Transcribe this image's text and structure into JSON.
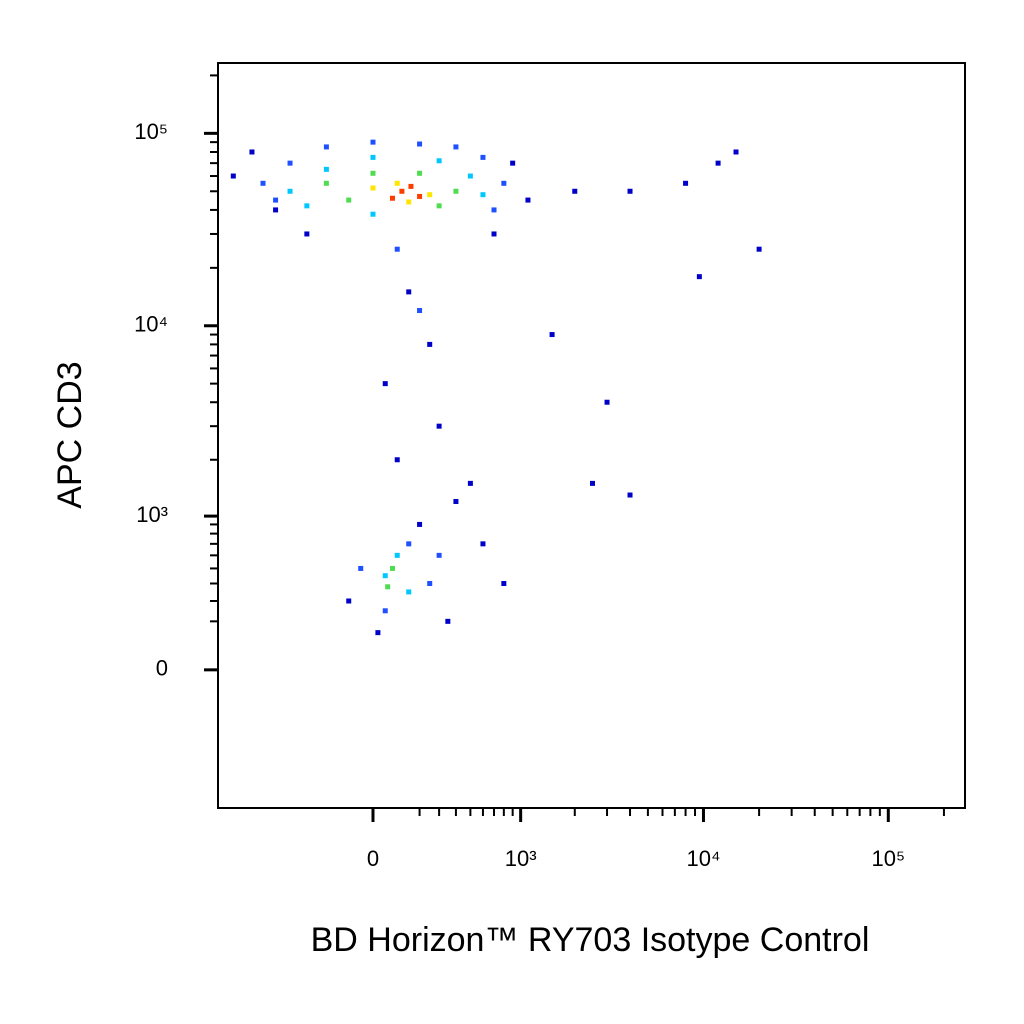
{
  "chart_data": {
    "type": "scatter",
    "x_label": "BD Horizon™ RY703 Isotype Control",
    "y_label": "APC  CD3",
    "scale": "biexponential",
    "xlim": [
      -1100,
      260000
    ],
    "ylim": [
      -820,
      232000
    ],
    "xticks": [
      0,
      {
        "value": 1000,
        "label": "10³"
      },
      {
        "value": 10000,
        "label": "10⁴"
      },
      {
        "value": 100000,
        "label": "10⁵"
      }
    ],
    "yticks": [
      0,
      {
        "value": 1000,
        "label": "10³"
      },
      {
        "value": 10000,
        "label": "10⁴"
      },
      {
        "value": 100000,
        "label": "10⁵"
      }
    ],
    "xminorticks": [
      200,
      300,
      400,
      500,
      600,
      700,
      800,
      900,
      2000,
      3000,
      4000,
      5000,
      6000,
      7000,
      8000,
      9000,
      20000,
      30000,
      40000,
      50000,
      60000,
      70000,
      80000,
      90000,
      200000
    ],
    "yminorticks": [
      200,
      300,
      400,
      500,
      600,
      700,
      800,
      900,
      2000,
      3000,
      4000,
      5000,
      6000,
      7000,
      8000,
      9000,
      20000,
      30000,
      40000,
      50000,
      60000,
      70000,
      80000,
      90000,
      200000
    ],
    "series": [
      {
        "color": "#0000c8",
        "x": [
          -900,
          -700,
          -500,
          -300,
          900,
          1100,
          700,
          2000,
          4000,
          8000,
          12000,
          15000,
          20000,
          3000,
          2500,
          4000,
          9500,
          150,
          250,
          50,
          300,
          100,
          400,
          200,
          -100,
          600,
          800,
          500,
          20,
          350,
          1500
        ],
        "y": [
          60000,
          80000,
          40000,
          30000,
          70000,
          45000,
          30000,
          50000,
          50000,
          55000,
          70000,
          80000,
          25000,
          4000,
          1500,
          1300,
          18000,
          15000,
          8000,
          5000,
          3000,
          2000,
          1200,
          900,
          300,
          700,
          400,
          1500,
          150,
          200,
          9000
        ]
      },
      {
        "color": "#1e50ff",
        "x": [
          -600,
          -400,
          -200,
          0,
          200,
          400,
          600,
          800,
          -500,
          700,
          100,
          200,
          150,
          -50,
          250,
          50,
          300
        ],
        "y": [
          55000,
          70000,
          85000,
          90000,
          88000,
          85000,
          75000,
          55000,
          45000,
          40000,
          25000,
          12000,
          700,
          500,
          400,
          250,
          600
        ]
      },
      {
        "color": "#00c8ff",
        "x": [
          -400,
          -200,
          0,
          300,
          500,
          600,
          -300,
          0,
          100,
          150,
          50
        ],
        "y": [
          50000,
          65000,
          75000,
          72000,
          60000,
          48000,
          42000,
          38000,
          600,
          350,
          450
        ]
      },
      {
        "color": "#50dc50",
        "x": [
          -200,
          0,
          200,
          400,
          -100,
          300,
          80,
          60
        ],
        "y": [
          55000,
          62000,
          62000,
          50000,
          45000,
          42000,
          500,
          380
        ]
      },
      {
        "color": "#ffe600",
        "x": [
          0,
          100,
          250,
          150
        ],
        "y": [
          52000,
          55000,
          48000,
          44000
        ]
      },
      {
        "color": "#ff3c00",
        "x": [
          120,
          200,
          160,
          80
        ],
        "y": [
          50000,
          47000,
          53000,
          46000
        ]
      }
    ]
  }
}
